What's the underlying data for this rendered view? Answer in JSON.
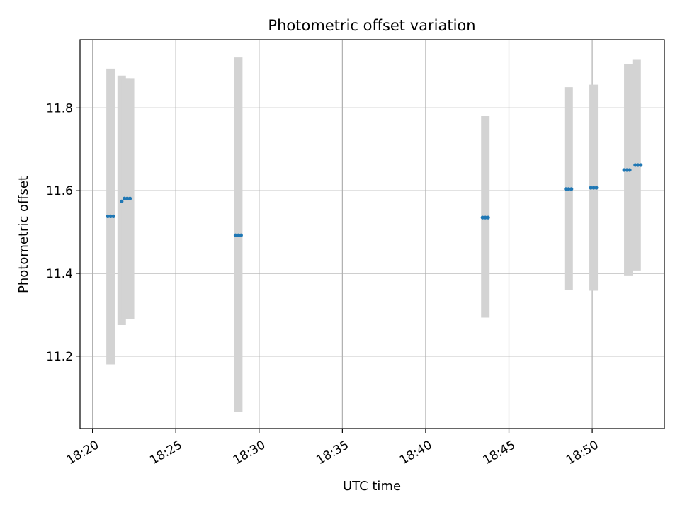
{
  "chart_data": {
    "type": "scatter",
    "title": "Photometric offset variation",
    "xlabel": "UTC time",
    "ylabel": "Photometric offset",
    "x_unit": "time (HH:MM, UTC)",
    "xlim": [
      "18:19:15",
      "18:54:20"
    ],
    "ylim": [
      11.025,
      11.965
    ],
    "x_ticks": [
      "18:20",
      "18:25",
      "18:30",
      "18:35",
      "18:40",
      "18:45",
      "18:50"
    ],
    "y_ticks": [
      11.2,
      11.4,
      11.6,
      11.8
    ],
    "grid": true,
    "colors": {
      "points": "#1f77b4",
      "error_bars": "#d3d3d3",
      "grid": "#b0b0b0"
    },
    "error_bars": [
      {
        "time": "18:21:05",
        "low": 11.18,
        "high": 11.895
      },
      {
        "time": "18:21:45",
        "low": 11.275,
        "high": 11.878
      },
      {
        "time": "18:22:00",
        "low": 11.29,
        "high": 11.872
      },
      {
        "time": "18:22:15",
        "low": 11.29,
        "high": 11.872
      },
      {
        "time": "18:28:45",
        "low": 11.065,
        "high": 11.922
      },
      {
        "time": "18:43:35",
        "low": 11.293,
        "high": 11.78
      },
      {
        "time": "18:48:35",
        "low": 11.36,
        "high": 11.85
      },
      {
        "time": "18:50:05",
        "low": 11.358,
        "high": 11.856
      },
      {
        "time": "18:52:10",
        "low": 11.395,
        "high": 11.905
      },
      {
        "time": "18:52:40",
        "low": 11.407,
        "high": 11.918
      }
    ],
    "points": [
      {
        "time": "18:20:55",
        "value": 11.538
      },
      {
        "time": "18:21:05",
        "value": 11.538
      },
      {
        "time": "18:21:15",
        "value": 11.538
      },
      {
        "time": "18:21:45",
        "value": 11.574
      },
      {
        "time": "18:21:55",
        "value": 11.581
      },
      {
        "time": "18:22:05",
        "value": 11.581
      },
      {
        "time": "18:22:15",
        "value": 11.581
      },
      {
        "time": "18:28:35",
        "value": 11.492
      },
      {
        "time": "18:28:45",
        "value": 11.492
      },
      {
        "time": "18:28:55",
        "value": 11.492
      },
      {
        "time": "18:43:25",
        "value": 11.535
      },
      {
        "time": "18:43:35",
        "value": 11.535
      },
      {
        "time": "18:43:45",
        "value": 11.535
      },
      {
        "time": "18:48:25",
        "value": 11.604
      },
      {
        "time": "18:48:35",
        "value": 11.604
      },
      {
        "time": "18:48:45",
        "value": 11.604
      },
      {
        "time": "18:49:55",
        "value": 11.607
      },
      {
        "time": "18:50:05",
        "value": 11.607
      },
      {
        "time": "18:50:15",
        "value": 11.607
      },
      {
        "time": "18:51:55",
        "value": 11.65
      },
      {
        "time": "18:52:05",
        "value": 11.65
      },
      {
        "time": "18:52:15",
        "value": 11.65
      },
      {
        "time": "18:52:35",
        "value": 11.662
      },
      {
        "time": "18:52:45",
        "value": 11.662
      },
      {
        "time": "18:52:55",
        "value": 11.662
      }
    ]
  }
}
